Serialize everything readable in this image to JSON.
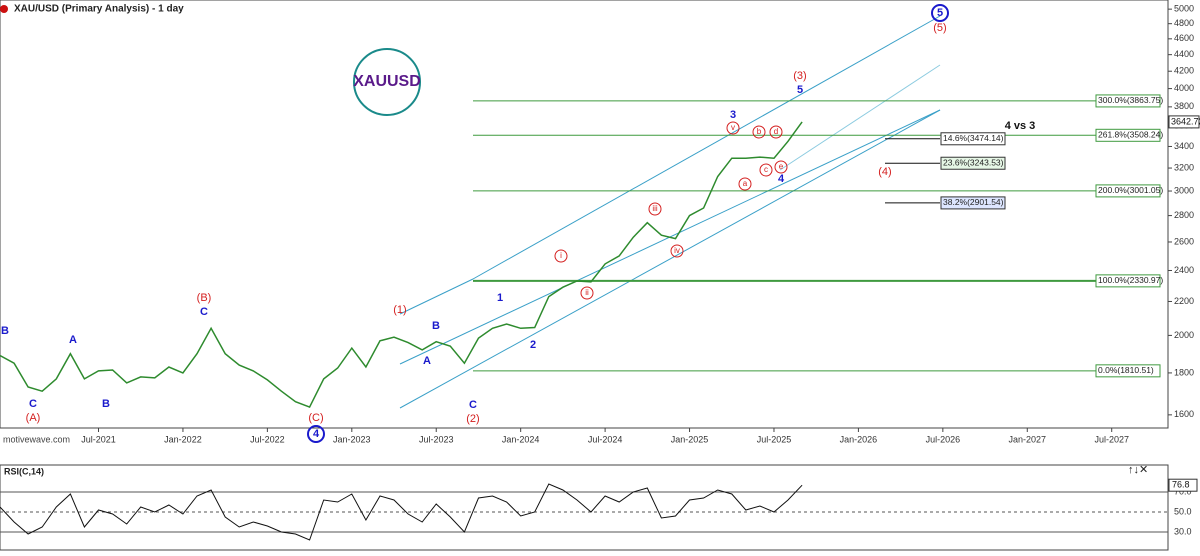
{
  "chart_data": {
    "type": "line",
    "title": "XAU/USD (Primary Analysis) - 1 day",
    "symbol": "XAUUSD",
    "watermark": "motivewave.com",
    "log_scale": true,
    "xlim": [
      "2020-12",
      "2027-11"
    ],
    "xticks": [
      {
        "value": "2021-07",
        "label": "Jul-2021"
      },
      {
        "value": "2022-01",
        "label": "Jan-2022"
      },
      {
        "value": "2022-07",
        "label": "Jul-2022"
      },
      {
        "value": "2023-01",
        "label": "Jan-2023"
      },
      {
        "value": "2023-07",
        "label": "Jul-2023"
      },
      {
        "value": "2024-01",
        "label": "Jan-2024"
      },
      {
        "value": "2024-07",
        "label": "Jul-2024"
      },
      {
        "value": "2025-01",
        "label": "Jan-2025"
      },
      {
        "value": "2025-07",
        "label": "Jul-2025"
      },
      {
        "value": "2026-01",
        "label": "Jan-2026"
      },
      {
        "value": "2026-07",
        "label": "Jul-2026"
      },
      {
        "value": "2027-01",
        "label": "Jan-2027"
      },
      {
        "value": "2027-07",
        "label": "Jul-2027"
      }
    ],
    "ylim": [
      1542,
      5130
    ],
    "yticks": [
      1600,
      1800,
      2000,
      2200,
      2400,
      2600,
      2800,
      3000,
      3200,
      3400,
      3600,
      3800,
      4000,
      4200,
      4400,
      4600,
      4800,
      5000
    ],
    "x": [
      "2020-12",
      "2021-01",
      "2021-02",
      "2021-03",
      "2021-04",
      "2021-05",
      "2021-06",
      "2021-07",
      "2021-08",
      "2021-09",
      "2021-10",
      "2021-11",
      "2021-12",
      "2022-01",
      "2022-02",
      "2022-03",
      "2022-04",
      "2022-05",
      "2022-06",
      "2022-07",
      "2022-08",
      "2022-09",
      "2022-10",
      "2022-11",
      "2022-12",
      "2023-01",
      "2023-02",
      "2023-03",
      "2023-04",
      "2023-05",
      "2023-06",
      "2023-07",
      "2023-08",
      "2023-09",
      "2023-10",
      "2023-11",
      "2023-12",
      "2024-01",
      "2024-02",
      "2024-03",
      "2024-04",
      "2024-05",
      "2024-06",
      "2024-07",
      "2024-08",
      "2024-09",
      "2024-10",
      "2024-11",
      "2024-12",
      "2025-01",
      "2025-02",
      "2025-03",
      "2025-04",
      "2025-05",
      "2025-06",
      "2025-07",
      "2025-08",
      "2025-09"
    ],
    "series": [
      {
        "name": "XAU/USD",
        "color": "#2e8b2e",
        "values": [
          1890,
          1850,
          1730,
          1710,
          1770,
          1900,
          1770,
          1810,
          1815,
          1750,
          1780,
          1775,
          1830,
          1800,
          1900,
          2040,
          1900,
          1840,
          1810,
          1765,
          1710,
          1660,
          1635,
          1770,
          1825,
          1930,
          1830,
          1970,
          1990,
          1960,
          1920,
          1965,
          1940,
          1850,
          1985,
          2040,
          2065,
          2040,
          2045,
          2230,
          2290,
          2330,
          2325,
          2445,
          2500,
          2635,
          2745,
          2650,
          2625,
          2800,
          2860,
          3125,
          3290,
          3290,
          3300,
          3290,
          3450,
          3642.72
        ]
      }
    ],
    "last_price": {
      "value": 3642.72,
      "label": "3642.72"
    },
    "levels": [
      {
        "label": "300.0%(3863.75)",
        "value": 3863.75,
        "style": "fib"
      },
      {
        "label": "261.8%(3508.24)",
        "value": 3508.24,
        "style": "fib"
      },
      {
        "label": "200.0%(3001.05)",
        "value": 3001.05,
        "style": "fib"
      },
      {
        "label": "100.0%(2330.97)",
        "value": 2330.97,
        "style": "fib-bold"
      },
      {
        "label": "0.0%(1810.51)",
        "value": 1810.51,
        "style": "fib"
      },
      {
        "label": "14.6%(3474.14)",
        "value": 3474.14,
        "style": "retrace"
      },
      {
        "label": "23.6%(3243.53)",
        "value": 3243.53,
        "style": "retrace-green"
      },
      {
        "label": "38.2%(2901.54)",
        "value": 2901.54,
        "style": "retrace-blue"
      }
    ],
    "annotations": [
      {
        "text": "(A)",
        "color": "#d42020"
      },
      {
        "text": "C",
        "color": "#1a1acc"
      },
      {
        "text": "B",
        "color": "#1a1acc"
      },
      {
        "text": "A",
        "color": "#1a1acc"
      },
      {
        "text": "B",
        "color": "#1a1acc"
      },
      {
        "text": "(B)",
        "color": "#d42020"
      },
      {
        "text": "C",
        "color": "#1a1acc"
      },
      {
        "text": "(C)",
        "color": "#d42020"
      },
      {
        "text": "4",
        "color": "#1a1acc",
        "circled": true
      },
      {
        "text": "(1)",
        "color": "#d42020"
      },
      {
        "text": "B",
        "color": "#1a1acc"
      },
      {
        "text": "A",
        "color": "#1a1acc"
      },
      {
        "text": "C",
        "color": "#1a1acc"
      },
      {
        "text": "(2)",
        "color": "#d42020"
      },
      {
        "text": "1",
        "color": "#1a1acc"
      },
      {
        "text": "2",
        "color": "#1a1acc"
      },
      {
        "text": "i",
        "color": "#d42020",
        "circled": true
      },
      {
        "text": "ii",
        "color": "#d42020",
        "circled": true
      },
      {
        "text": "iii",
        "color": "#d42020",
        "circled": true
      },
      {
        "text": "iv",
        "color": "#d42020",
        "circled": true
      },
      {
        "text": "3",
        "color": "#1a1acc"
      },
      {
        "text": "v",
        "color": "#d42020",
        "circled": true
      },
      {
        "text": "a",
        "color": "#d42020",
        "circled": true
      },
      {
        "text": "b",
        "color": "#d42020",
        "circled": true
      },
      {
        "text": "c",
        "color": "#d42020",
        "circled": true
      },
      {
        "text": "d",
        "color": "#d42020",
        "circled": true
      },
      {
        "text": "e",
        "color": "#d42020",
        "circled": true
      },
      {
        "text": "4",
        "color": "#1a1acc"
      },
      {
        "text": "(3)",
        "color": "#d42020"
      },
      {
        "text": "5",
        "color": "#1a1acc"
      },
      {
        "text": "(5)",
        "color": "#d42020"
      },
      {
        "text": "5",
        "color": "#1a1acc",
        "circled": true
      },
      {
        "text": "(4)",
        "color": "#d42020"
      },
      {
        "text": "4 vs 3",
        "color": "#111111"
      }
    ],
    "rsi": {
      "title": "RSI(C,14)",
      "ylim": [
        12,
        97
      ],
      "yticks": [
        {
          "value": 30,
          "label": "30.0"
        },
        {
          "value": 50,
          "label": "50.0"
        },
        {
          "value": 70,
          "label": "70.0"
        }
      ],
      "last": {
        "value": 76.8,
        "label": "76.8"
      },
      "color": "#111111",
      "values": [
        55,
        40,
        28,
        35,
        55,
        68,
        35,
        52,
        48,
        38,
        55,
        50,
        57,
        48,
        66,
        72,
        45,
        35,
        40,
        36,
        30,
        28,
        22,
        62,
        60,
        68,
        42,
        66,
        62,
        48,
        40,
        58,
        45,
        30,
        64,
        66,
        60,
        46,
        50,
        78,
        72,
        62,
        50,
        66,
        60,
        70,
        74,
        44,
        46,
        62,
        64,
        72,
        68,
        52,
        56,
        50,
        62,
        76.8
      ]
    }
  }
}
